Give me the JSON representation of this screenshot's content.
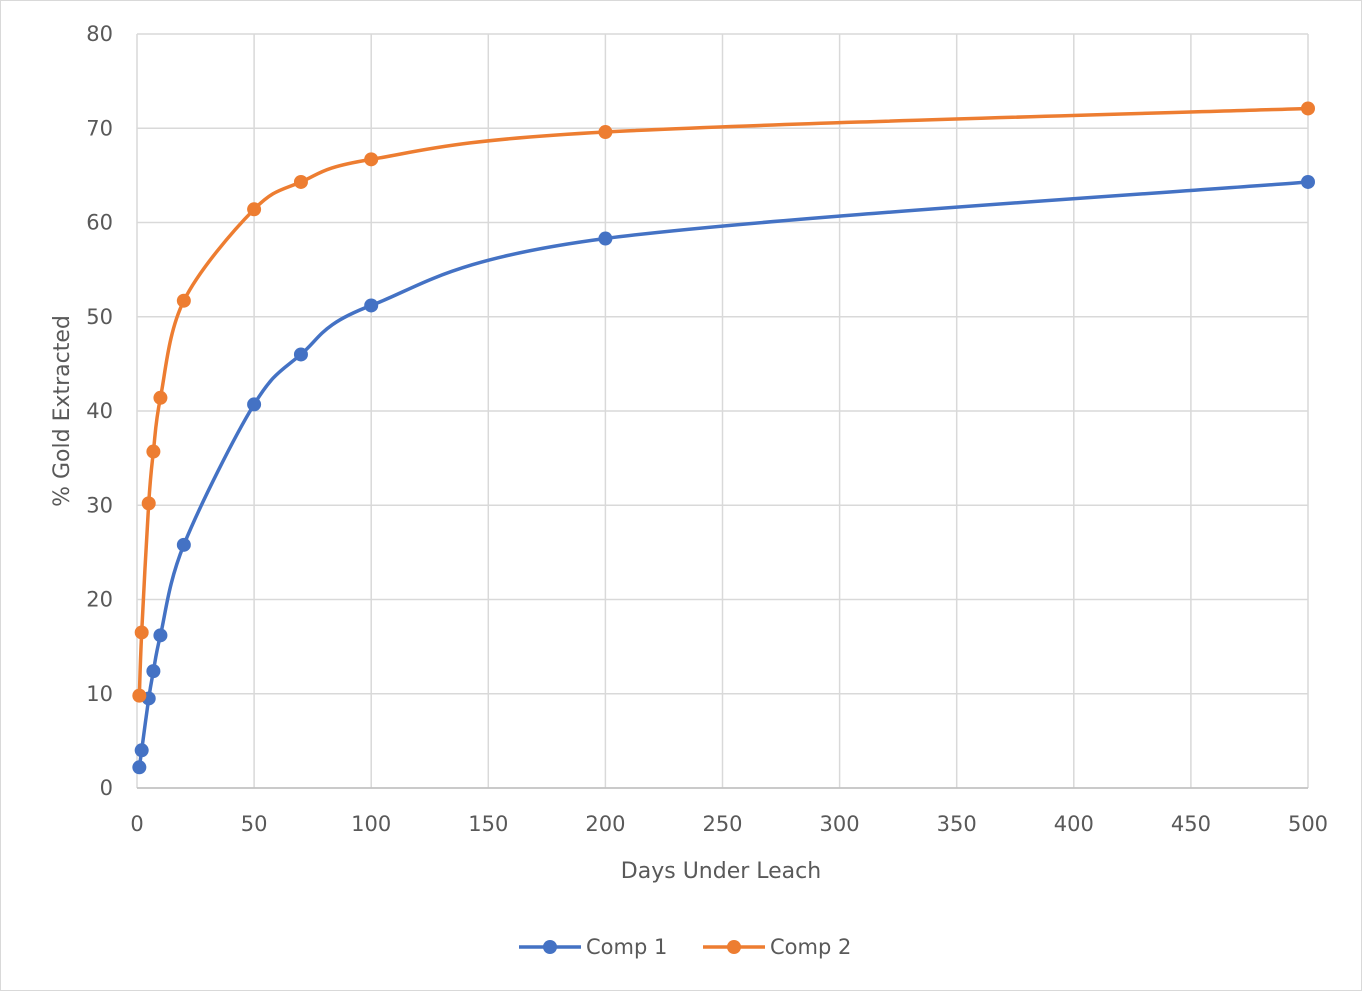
{
  "chart_data": {
    "type": "line",
    "title": "",
    "xlabel": "Days Under Leach",
    "ylabel": "% Gold Extracted",
    "xlim": [
      0,
      500
    ],
    "ylim": [
      0,
      80
    ],
    "x_ticks": [
      "0",
      "50",
      "100",
      "150",
      "200",
      "250",
      "300",
      "350",
      "400",
      "450",
      "500"
    ],
    "y_ticks": [
      "0",
      "10",
      "20",
      "30",
      "40",
      "50",
      "60",
      "70",
      "80"
    ],
    "grid": true,
    "smooth": true,
    "markers": true,
    "legend_position": "bottom",
    "series": [
      {
        "name": "Comp 1",
        "color": "#4472c4",
        "x": [
          1,
          2,
          5,
          7,
          10,
          20,
          50,
          70,
          100,
          200,
          500
        ],
        "y": [
          2.2,
          4.0,
          9.5,
          12.4,
          16.2,
          25.8,
          40.7,
          46.0,
          51.2,
          58.3,
          64.3
        ]
      },
      {
        "name": "Comp 2",
        "color": "#ed7d31",
        "x": [
          1,
          2,
          5,
          7,
          10,
          20,
          50,
          70,
          100,
          200,
          500
        ],
        "y": [
          9.8,
          16.5,
          30.2,
          35.7,
          41.4,
          51.7,
          61.4,
          64.3,
          66.7,
          69.6,
          72.1
        ]
      }
    ]
  }
}
